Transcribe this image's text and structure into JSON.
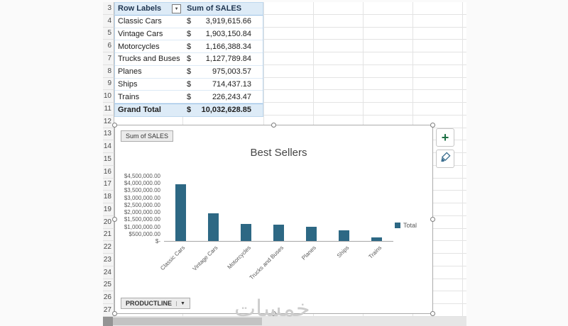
{
  "colors": {
    "pivot_header_fill": "#ddebf7",
    "selection_border": "#ababab"
  },
  "sheet": {
    "row_numbers": [
      3,
      4,
      5,
      6,
      7,
      8,
      9,
      10,
      11,
      12,
      13,
      14,
      15,
      16,
      17,
      18,
      19,
      20,
      21,
      22,
      23,
      24,
      25,
      26,
      27
    ]
  },
  "pivot": {
    "header": {
      "row_labels": "Row Labels",
      "values": "Sum of SALES",
      "filter_icon_glyph": "▼"
    },
    "rows": [
      {
        "label": "Classic Cars",
        "currency": "$",
        "amount": "3,919,615.66"
      },
      {
        "label": "Vintage Cars",
        "currency": "$",
        "amount": "1,903,150.84"
      },
      {
        "label": "Motorcycles",
        "currency": "$",
        "amount": "1,166,388.34"
      },
      {
        "label": "Trucks and Buses",
        "currency": "$",
        "amount": "1,127,789.84"
      },
      {
        "label": "Planes",
        "currency": "$",
        "amount": "975,003.57"
      },
      {
        "label": "Ships",
        "currency": "$",
        "amount": "714,437.13"
      },
      {
        "label": "Trains",
        "currency": "$",
        "amount": "226,243.47"
      }
    ],
    "grand_total": {
      "label": "Grand Total",
      "currency": "$",
      "amount": "10,032,628.85"
    }
  },
  "chart": {
    "value_field_button": "Sum of  SALES",
    "axis_field_button": "PRODUCTLINE",
    "axis_button_arrow": "▼",
    "title": "Best Sellers",
    "legend": "Total"
  },
  "chart_data": {
    "type": "bar",
    "title": "Best Sellers",
    "categories": [
      "Classic Cars",
      "Vintage Cars",
      "Motorcycles",
      "Trucks and Buses",
      "Planes",
      "Ships",
      "Trains"
    ],
    "series": [
      {
        "name": "Total",
        "values": [
          3919615.66,
          1903150.84,
          1166388.34,
          1127789.84,
          975003.57,
          714437.13,
          226243.47
        ]
      }
    ],
    "ylim": [
      0,
      4500000
    ],
    "ytick_step": 500000,
    "ytick_labels_top_to_bottom": [
      "$4,500,000.00",
      "$4,000,000.00",
      "$3,500,000.00",
      "$3,000,000.00",
      "$2,500,000.00",
      "$2,000,000.00",
      "$1,500,000.00",
      "$1,000,000.00",
      "$500,000.00",
      "$-"
    ],
    "legend_position": "right",
    "grid": false,
    "bar_color": "#2d6884"
  },
  "side_toolbar": {
    "chart_elements_glyph": "+"
  },
  "watermark": "خمسات"
}
